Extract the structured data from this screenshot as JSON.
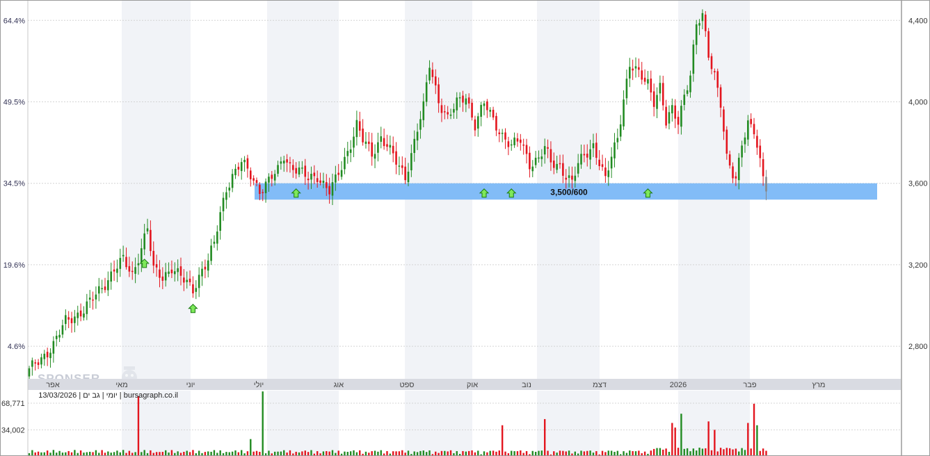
{
  "chart_data": {
    "type": "candlestick",
    "info_line": "יומי | גב ים | 13/03/2026 | bursagraph.co.il",
    "watermark": "SPONSER",
    "price_axis": {
      "ylim": [
        2640,
        4500
      ],
      "ticks": [
        {
          "value": 2800,
          "label": "2,800"
        },
        {
          "value": 3200,
          "label": "3,200"
        },
        {
          "value": 3600,
          "label": "3,600"
        },
        {
          "value": 4000,
          "label": "4,000"
        },
        {
          "value": 4400,
          "label": "4,400"
        }
      ]
    },
    "percent_axis": {
      "ticks": [
        {
          "value": 2800,
          "label": "4.6%"
        },
        {
          "value": 3200,
          "label": "19.6%"
        },
        {
          "value": 3600,
          "label": "34.5%"
        },
        {
          "value": 4000,
          "label": "49.5%"
        },
        {
          "value": 4400,
          "label": "64.4%"
        }
      ]
    },
    "months": [
      "אפר",
      "מאי",
      "יוני",
      "יולי",
      "אוג",
      "ספט",
      "אוק",
      "נוב",
      "דצמ",
      "2026",
      "פבר",
      "מרץ"
    ],
    "support_zone": {
      "label": "3,500/600",
      "low": 3520,
      "high": 3600
    },
    "support_touches": [
      38,
      54,
      88,
      150,
      159,
      204
    ],
    "anchors": [
      [
        0,
        2680
      ],
      [
        4,
        2740
      ],
      [
        8,
        2810
      ],
      [
        12,
        2920
      ],
      [
        18,
        2980
      ],
      [
        22,
        3050
      ],
      [
        25,
        3110
      ],
      [
        28,
        3180
      ],
      [
        31,
        3220
      ],
      [
        34,
        3150
      ],
      [
        37,
        3290
      ],
      [
        39,
        3380
      ],
      [
        41,
        3170
      ],
      [
        44,
        3140
      ],
      [
        47,
        3190
      ],
      [
        51,
        3120
      ],
      [
        54,
        3080
      ],
      [
        57,
        3180
      ],
      [
        59,
        3220
      ],
      [
        61,
        3300
      ],
      [
        63,
        3450
      ],
      [
        65,
        3580
      ],
      [
        67,
        3640
      ],
      [
        70,
        3700
      ],
      [
        73,
        3640
      ],
      [
        76,
        3570
      ],
      [
        79,
        3610
      ],
      [
        82,
        3660
      ],
      [
        84,
        3740
      ],
      [
        86,
        3690
      ],
      [
        89,
        3660
      ],
      [
        92,
        3620
      ],
      [
        95,
        3640
      ],
      [
        97,
        3600
      ],
      [
        99,
        3560
      ],
      [
        101,
        3610
      ],
      [
        103,
        3680
      ],
      [
        106,
        3800
      ],
      [
        108,
        3890
      ],
      [
        110,
        3810
      ],
      [
        113,
        3740
      ],
      [
        116,
        3830
      ],
      [
        118,
        3790
      ],
      [
        121,
        3700
      ],
      [
        124,
        3630
      ],
      [
        126,
        3750
      ],
      [
        128,
        3870
      ],
      [
        130,
        3970
      ],
      [
        132,
        4180
      ],
      [
        135,
        4010
      ],
      [
        138,
        3920
      ],
      [
        141,
        3990
      ],
      [
        144,
        4030
      ],
      [
        147,
        3890
      ],
      [
        150,
        3990
      ],
      [
        153,
        3910
      ],
      [
        156,
        3840
      ],
      [
        159,
        3780
      ],
      [
        162,
        3810
      ],
      [
        165,
        3700
      ],
      [
        168,
        3720
      ],
      [
        170,
        3770
      ],
      [
        172,
        3700
      ],
      [
        175,
        3690
      ],
      [
        177,
        3640
      ],
      [
        179,
        3600
      ],
      [
        181,
        3690
      ],
      [
        183,
        3740
      ],
      [
        186,
        3790
      ],
      [
        188,
        3700
      ],
      [
        190,
        3610
      ],
      [
        192,
        3730
      ],
      [
        194,
        3830
      ],
      [
        196,
        4020
      ],
      [
        198,
        4180
      ],
      [
        201,
        4130
      ],
      [
        204,
        4100
      ],
      [
        206,
        4010
      ],
      [
        208,
        4070
      ],
      [
        210,
        3890
      ],
      [
        212,
        3960
      ],
      [
        214,
        3910
      ],
      [
        216,
        4040
      ],
      [
        218,
        4130
      ],
      [
        220,
        4370
      ],
      [
        222,
        4420
      ],
      [
        224,
        4240
      ],
      [
        226,
        4140
      ],
      [
        228,
        3990
      ],
      [
        230,
        3710
      ],
      [
        232,
        3640
      ],
      [
        233,
        3620
      ],
      [
        235,
        3810
      ],
      [
        237,
        3900
      ],
      [
        239,
        3850
      ],
      [
        241,
        3690
      ],
      [
        243,
        3560
      ]
    ],
    "volume_axis": {
      "max": 85000,
      "ticks": [
        {
          "value": 34002,
          "label": "34,002"
        },
        {
          "value": 68771,
          "label": "68,771"
        }
      ]
    },
    "volume_spikes": [
      {
        "day": 36,
        "value": 78000,
        "up": false
      },
      {
        "day": 77,
        "value": 84000,
        "up": true
      },
      {
        "day": 73,
        "value": 22000,
        "up": true
      },
      {
        "day": 156,
        "value": 40000,
        "up": false
      },
      {
        "day": 170,
        "value": 48000,
        "up": false
      },
      {
        "day": 212,
        "value": 43000,
        "up": false
      },
      {
        "day": 213,
        "value": 37000,
        "up": false
      },
      {
        "day": 215,
        "value": 55000,
        "up": true
      },
      {
        "day": 224,
        "value": 45000,
        "up": false
      },
      {
        "day": 226,
        "value": 34000,
        "up": false
      },
      {
        "day": 237,
        "value": 43000,
        "up": false
      },
      {
        "day": 239,
        "value": 68000,
        "up": false
      },
      {
        "day": 240,
        "value": 40000,
        "up": true
      }
    ],
    "colors": {
      "up": "#228b22",
      "down": "#e3151e",
      "last": "#888888",
      "zone": "#82bcf7",
      "arrow_fill": "#7ee85a",
      "arrow_stroke": "#1a7a12"
    }
  }
}
